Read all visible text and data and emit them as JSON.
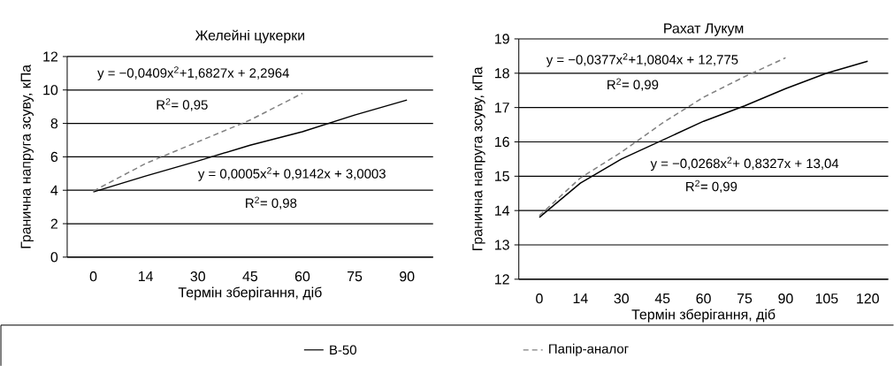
{
  "chart_data": [
    {
      "type": "line",
      "title": "Желейні цукерки",
      "xlabel": "Термін зберігання, діб",
      "ylabel": "Гранична напруга зсуву, кПа",
      "categories": [
        "0",
        "14",
        "30",
        "45",
        "60",
        "75",
        "90"
      ],
      "series": [
        {
          "name": "B-50",
          "color": "#000000",
          "line_style": "solid",
          "values": [
            3.9,
            4.85,
            5.75,
            6.7,
            7.5,
            8.5,
            9.4
          ]
        },
        {
          "name": "Папір-аналог",
          "color": "#808080",
          "line_style": "dashed",
          "values": [
            3.95,
            5.6,
            6.9,
            8.2,
            9.8,
            null,
            null
          ]
        }
      ],
      "ylim": [
        0,
        12
      ],
      "yticks": [
        0,
        2,
        4,
        6,
        8,
        10,
        12
      ],
      "grid": "y",
      "legend": "bottom",
      "annotations": [
        "y = −0,0409x$^{2}$+1,6827x + 2,2964",
        "R$^{2}$= 0,95",
        "y = 0,0005x$^{2}$+ 0,9142x + 3,0003",
        "R$^{2}$= 0,98"
      ]
    },
    {
      "type": "line",
      "title": "Рахат Лукум",
      "xlabel": "Термін зберігання, діб",
      "ylabel": "Гранична напруга зсуву, кПа",
      "categories": [
        "0",
        "14",
        "30",
        "45",
        "60",
        "75",
        "90",
        "105",
        "120"
      ],
      "series": [
        {
          "color": "#000000",
          "line_style": "solid",
          "values": [
            13.8,
            14.8,
            15.5,
            16.05,
            16.6,
            17.05,
            17.55,
            18.0,
            18.35
          ]
        },
        {
          "color": "#808080",
          "line_style": "dashed",
          "values": [
            13.85,
            14.95,
            15.7,
            16.55,
            17.3,
            17.9,
            18.45,
            null,
            null
          ]
        }
      ],
      "ylim": [
        12,
        19
      ],
      "yticks": [
        12,
        13,
        14,
        15,
        16,
        17,
        18,
        19
      ],
      "grid": "y",
      "annotations": [
        "y = −0,0377x$^{2}$+1,0804x + 12,775",
        "R$^{2}$= 0,99",
        "y = −0,0268x$^{2}$+ 0,8327x + 13,04",
        "R$^{2}$= 0,99"
      ]
    }
  ]
}
